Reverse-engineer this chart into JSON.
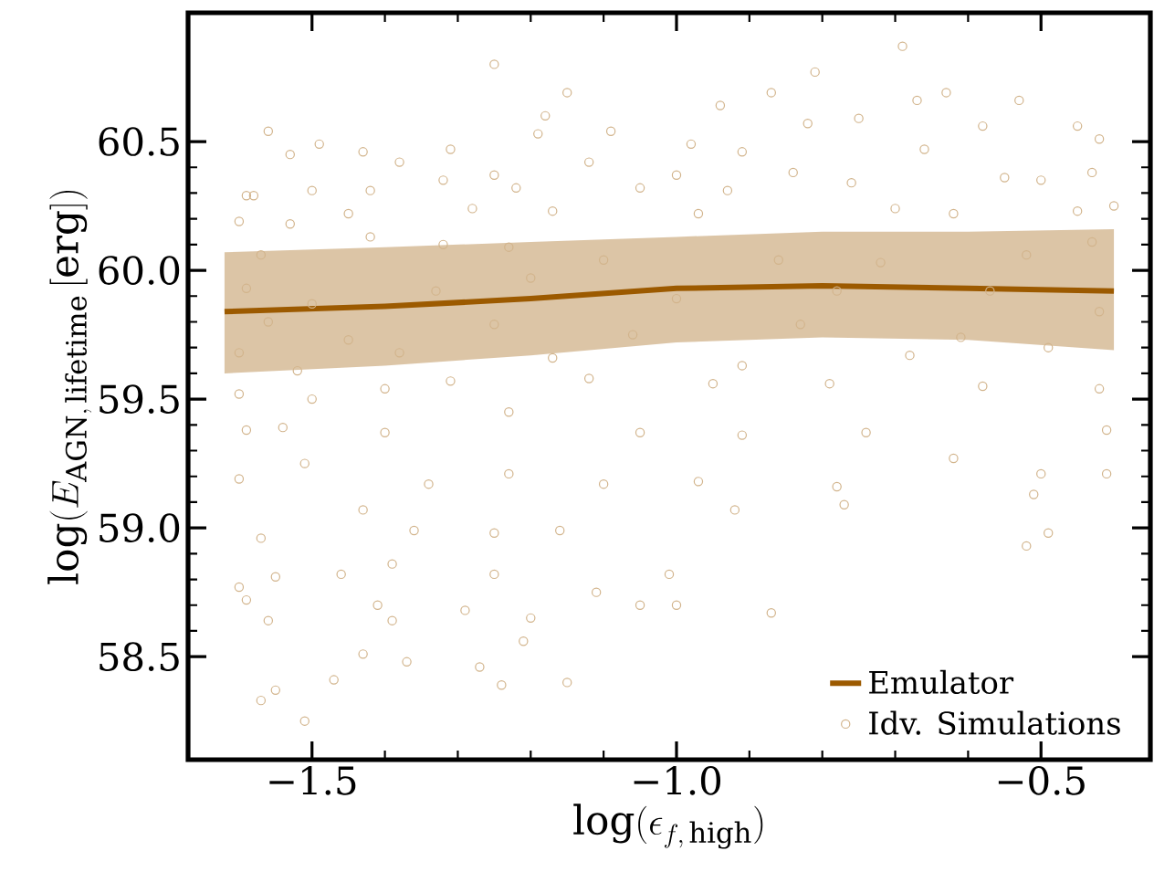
{
  "chart_data": {
    "type": "scatter",
    "xlabel": "\\log(\\epsilon_{f,\\,\\mathrm{high}})",
    "ylabel": "\\log(E_{\\mathrm{AGN,\\,lifetime}}\\,[\\mathrm{erg}])",
    "xlim": [
      -1.67,
      -0.35
    ],
    "ylim": [
      58.1,
      61.0
    ],
    "xticks": [
      {
        "value": -1.5,
        "label": "−1.5"
      },
      {
        "value": -1.0,
        "label": "−1.0"
      },
      {
        "value": -0.5,
        "label": "−0.5"
      }
    ],
    "yticks": [
      {
        "value": 58.5,
        "label": "58.5"
      },
      {
        "value": 59.0,
        "label": "59.0"
      },
      {
        "value": 59.5,
        "label": "59.5"
      },
      {
        "value": 60.0,
        "label": "60.0"
      },
      {
        "value": 60.5,
        "label": "60.5"
      }
    ],
    "legend": "bottom right",
    "series": [
      {
        "name": "Emulator",
        "type": "line",
        "color": "#9c5a00",
        "line_style": "solid",
        "x": [
          -1.62,
          -1.4,
          -1.2,
          -1.0,
          -0.8,
          -0.6,
          -0.4
        ],
        "values": [
          59.84,
          59.86,
          59.89,
          59.93,
          59.94,
          59.93,
          59.92
        ],
        "lower": [
          59.6,
          59.63,
          59.67,
          59.72,
          59.74,
          59.73,
          59.69
        ],
        "upper": [
          60.07,
          60.09,
          60.11,
          60.13,
          60.15,
          60.15,
          60.16
        ]
      },
      {
        "name": "Idv. Simulations",
        "color": "#d2b48c",
        "marker": "circle",
        "x": [
          -1.25,
          -0.69,
          -0.81,
          -1.15,
          -0.63,
          -0.87,
          -0.53,
          -0.94,
          -0.67,
          -1.18,
          -1.56,
          -0.75,
          -1.19,
          -1.09,
          -0.45,
          -0.58,
          -0.42,
          -1.49,
          -1.53,
          -1.43,
          -1.31,
          -0.98,
          -0.82,
          -0.91,
          -0.66,
          -0.43,
          -1.38,
          -1.25,
          -1.12,
          -1.0,
          -0.76,
          -0.55,
          -1.59,
          -1.58,
          -1.5,
          -1.42,
          -1.32,
          -1.22,
          -1.05,
          -0.93,
          -0.84,
          -0.5,
          -0.4,
          -1.6,
          -1.53,
          -1.45,
          -1.28,
          -1.17,
          -0.97,
          -0.7,
          -0.62,
          -0.45,
          -1.57,
          -1.42,
          -1.32,
          -1.23,
          -1.1,
          -0.86,
          -0.72,
          -0.52,
          -0.43,
          -1.59,
          -1.5,
          -1.33,
          -1.2,
          -1.0,
          -0.78,
          -0.57,
          -0.42,
          -1.6,
          -1.45,
          -1.25,
          -1.06,
          -0.83,
          -0.61,
          -1.56,
          -1.52,
          -1.38,
          -1.17,
          -0.91,
          -0.68,
          -0.49,
          -1.6,
          -1.5,
          -1.4,
          -1.31,
          -1.12,
          -0.95,
          -0.79,
          -0.58,
          -0.42,
          -1.59,
          -1.54,
          -1.4,
          -1.23,
          -1.05,
          -0.91,
          -0.74,
          -0.62,
          -0.41,
          -1.6,
          -1.51,
          -1.34,
          -1.23,
          -1.1,
          -0.97,
          -0.78,
          -0.5,
          -0.41,
          -1.57,
          -1.43,
          -1.36,
          -1.25,
          -1.16,
          -0.92,
          -0.77,
          -0.51,
          -0.52,
          -0.49,
          -1.6,
          -1.55,
          -1.46,
          -1.39,
          -1.25,
          -1.11,
          -1.01,
          -1.59,
          -1.41,
          -1.29,
          -1.05,
          -1.0,
          -0.87,
          -1.56,
          -1.39,
          -1.21,
          -1.2,
          -1.43,
          -1.37,
          -1.27,
          -1.47,
          -1.24,
          -1.15,
          -1.55,
          -1.57,
          -1.51
        ],
        "values": [
          60.8,
          60.87,
          60.77,
          60.69,
          60.69,
          60.69,
          60.66,
          60.64,
          60.66,
          60.6,
          60.54,
          60.59,
          60.53,
          60.54,
          60.56,
          60.56,
          60.51,
          60.49,
          60.45,
          60.46,
          60.47,
          60.49,
          60.57,
          60.46,
          60.47,
          60.38,
          60.42,
          60.37,
          60.42,
          60.37,
          60.34,
          60.36,
          60.29,
          60.29,
          60.31,
          60.31,
          60.35,
          60.32,
          60.32,
          60.31,
          60.38,
          60.35,
          60.25,
          60.19,
          60.18,
          60.22,
          60.24,
          60.23,
          60.22,
          60.24,
          60.22,
          60.23,
          60.06,
          60.13,
          60.1,
          60.09,
          60.04,
          60.04,
          60.03,
          60.06,
          60.11,
          59.93,
          59.87,
          59.92,
          59.97,
          59.89,
          59.92,
          59.92,
          59.84,
          59.68,
          59.73,
          59.79,
          59.75,
          59.79,
          59.74,
          59.8,
          59.61,
          59.68,
          59.66,
          59.63,
          59.67,
          59.7,
          59.52,
          59.5,
          59.54,
          59.57,
          59.58,
          59.56,
          59.56,
          59.55,
          59.54,
          59.38,
          59.39,
          59.37,
          59.45,
          59.37,
          59.36,
          59.37,
          59.27,
          59.38,
          59.19,
          59.25,
          59.17,
          59.21,
          59.17,
          59.18,
          59.16,
          59.21,
          59.21,
          58.96,
          59.07,
          58.99,
          58.98,
          58.99,
          59.07,
          59.09,
          59.13,
          58.93,
          58.98,
          58.77,
          58.81,
          58.82,
          58.86,
          58.82,
          58.75,
          58.82,
          58.72,
          58.7,
          58.68,
          58.7,
          58.7,
          58.67,
          58.64,
          58.64,
          58.56,
          58.65,
          58.51,
          58.48,
          58.46,
          58.41,
          58.39,
          58.4,
          58.37,
          58.33,
          58.25
        ]
      }
    ]
  }
}
